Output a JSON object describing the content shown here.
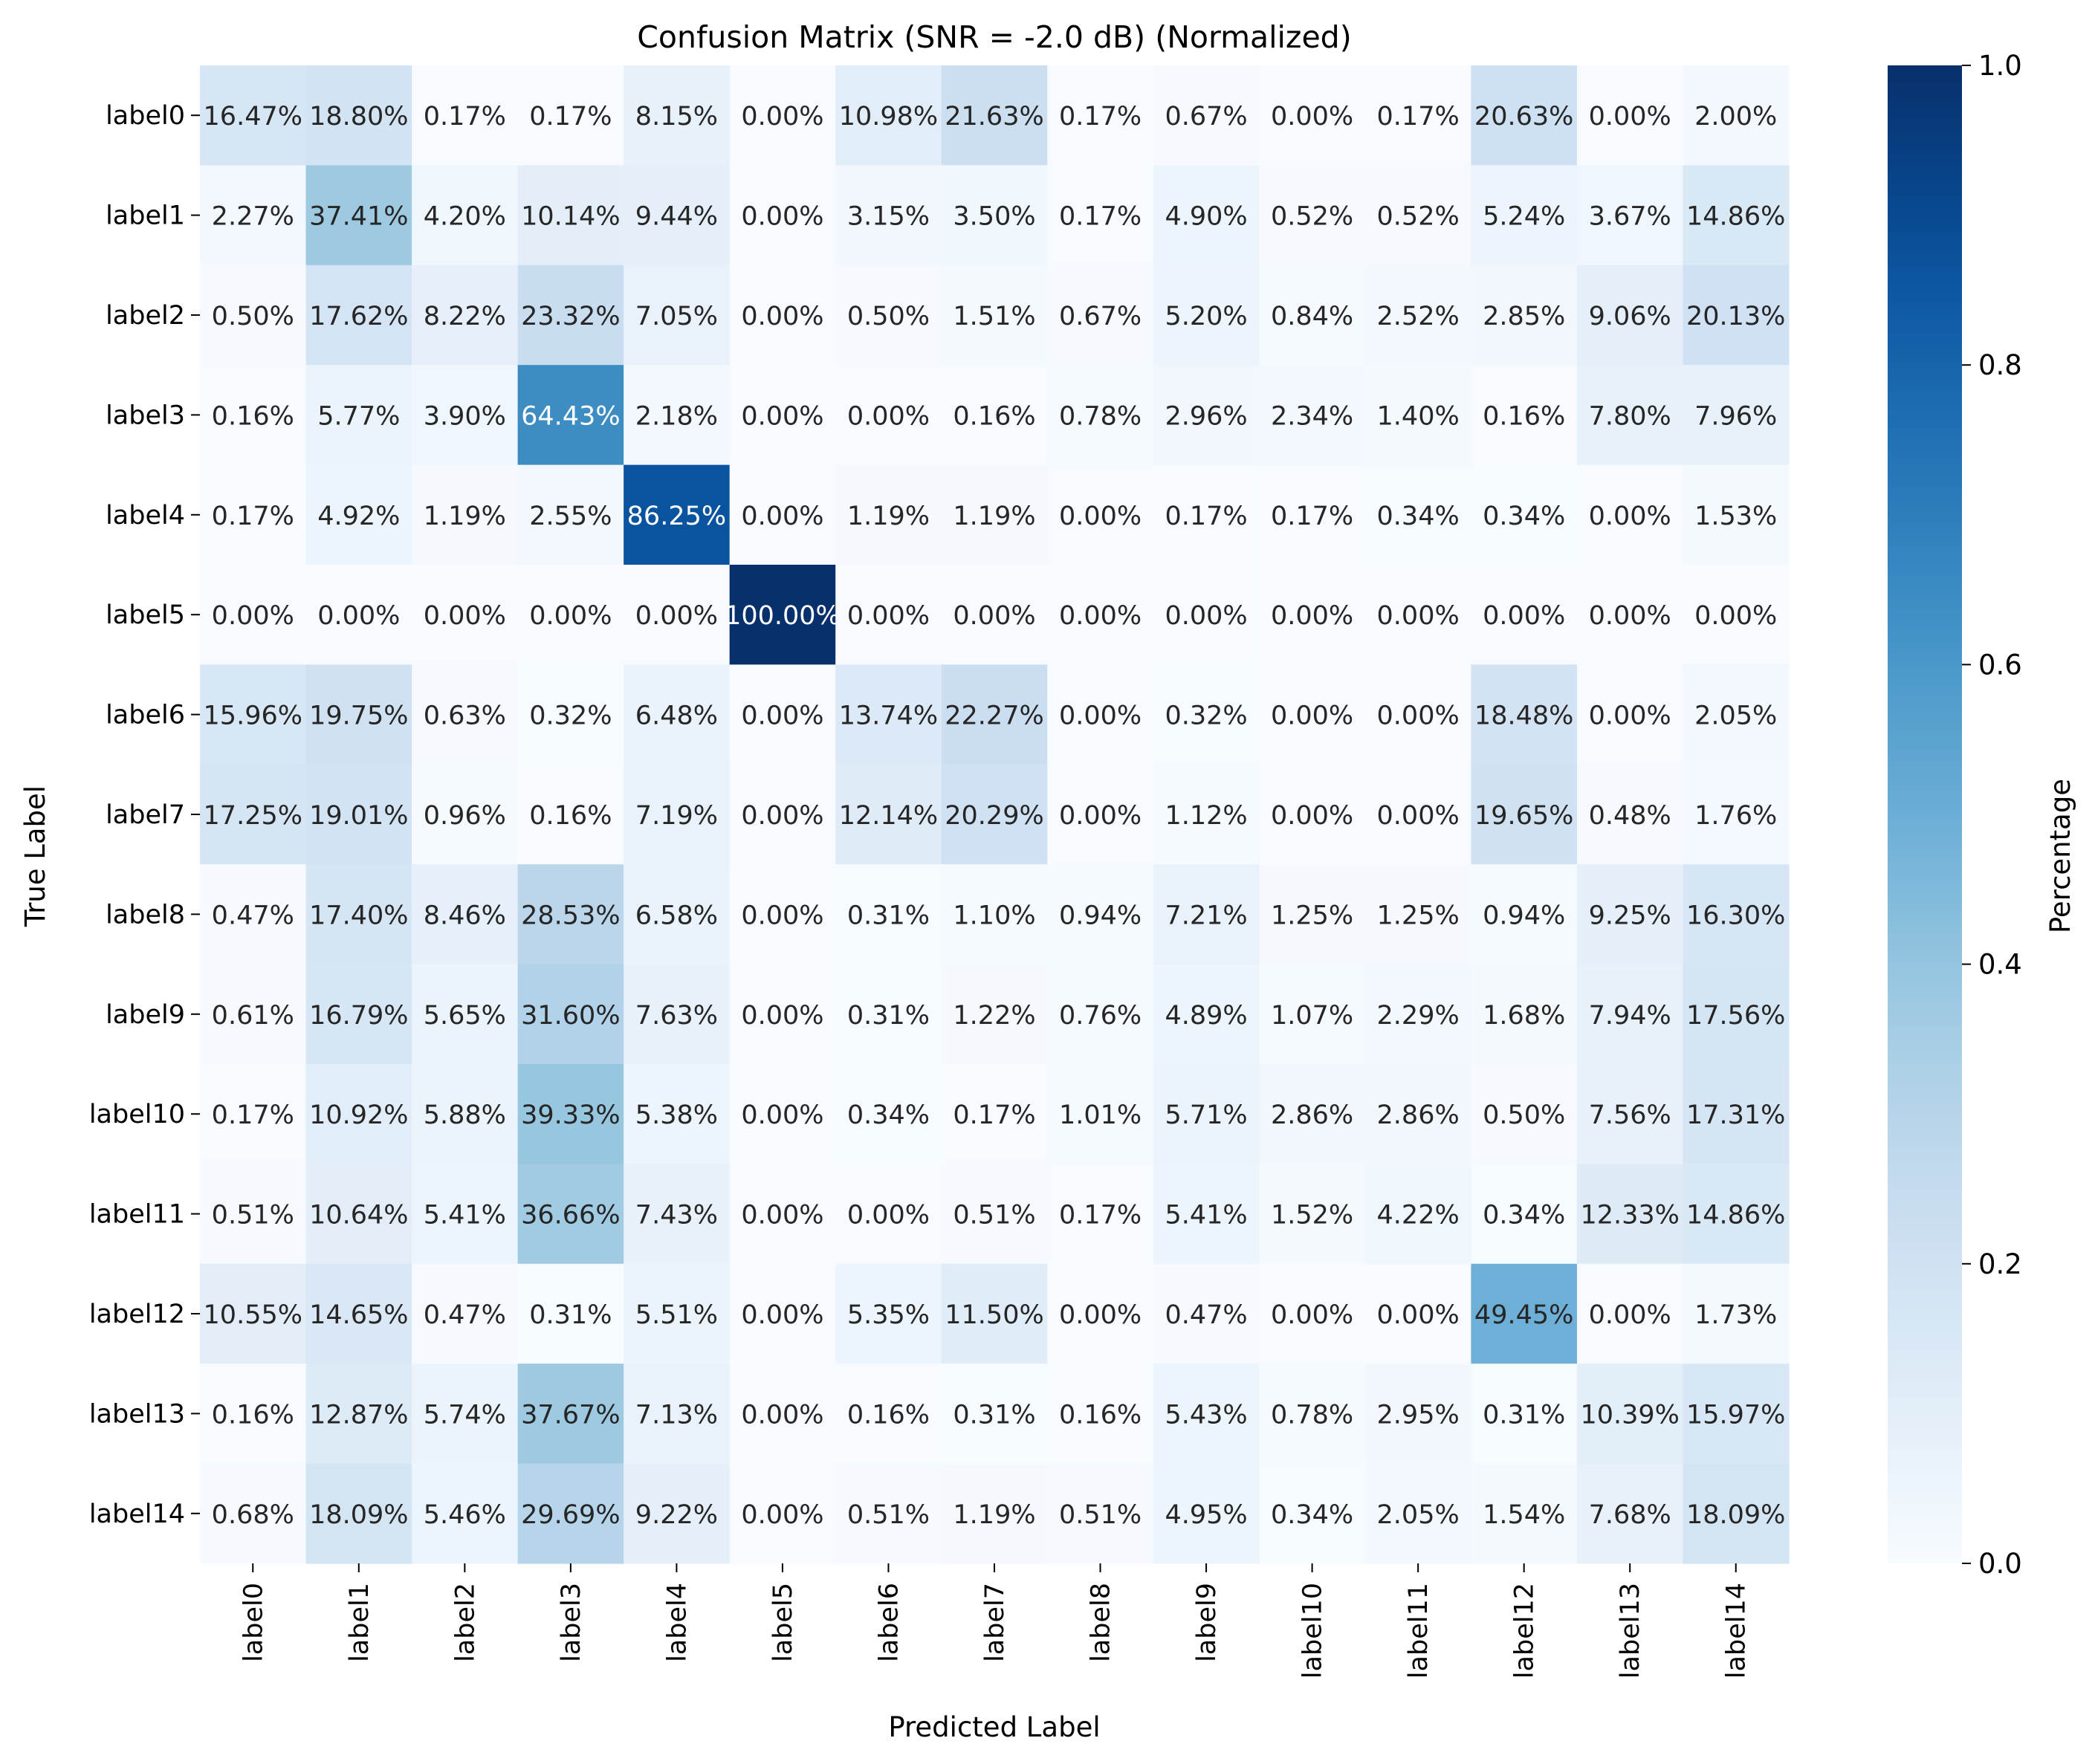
{
  "chart_data": {
    "type": "heatmap",
    "title": "Confusion Matrix (SNR = -2.0 dB) (Normalized)",
    "xlabel": "Predicted Label",
    "ylabel": "True Label",
    "x_categories": [
      "label0",
      "label1",
      "label2",
      "label3",
      "label4",
      "label5",
      "label6",
      "label7",
      "label8",
      "label9",
      "label10",
      "label11",
      "label12",
      "label13",
      "label14"
    ],
    "y_categories": [
      "label0",
      "label1",
      "label2",
      "label3",
      "label4",
      "label5",
      "label6",
      "label7",
      "label8",
      "label9",
      "label10",
      "label11",
      "label12",
      "label13",
      "label14"
    ],
    "values": [
      [
        16.47,
        18.8,
        0.17,
        0.17,
        8.15,
        0.0,
        10.98,
        21.63,
        0.17,
        0.67,
        0.0,
        0.17,
        20.63,
        0.0,
        2.0
      ],
      [
        2.27,
        37.41,
        4.2,
        10.14,
        9.44,
        0.0,
        3.15,
        3.5,
        0.17,
        4.9,
        0.52,
        0.52,
        5.24,
        3.67,
        14.86
      ],
      [
        0.5,
        17.62,
        8.22,
        23.32,
        7.05,
        0.0,
        0.5,
        1.51,
        0.67,
        5.2,
        0.84,
        2.52,
        2.85,
        9.06,
        20.13
      ],
      [
        0.16,
        5.77,
        3.9,
        64.43,
        2.18,
        0.0,
        0.0,
        0.16,
        0.78,
        2.96,
        2.34,
        1.4,
        0.16,
        7.8,
        7.96
      ],
      [
        0.17,
        4.92,
        1.19,
        2.55,
        86.25,
        0.0,
        1.19,
        1.19,
        0.0,
        0.17,
        0.17,
        0.34,
        0.34,
        0.0,
        1.53
      ],
      [
        0.0,
        0.0,
        0.0,
        0.0,
        0.0,
        100.0,
        0.0,
        0.0,
        0.0,
        0.0,
        0.0,
        0.0,
        0.0,
        0.0,
        0.0
      ],
      [
        15.96,
        19.75,
        0.63,
        0.32,
        6.48,
        0.0,
        13.74,
        22.27,
        0.0,
        0.32,
        0.0,
        0.0,
        18.48,
        0.0,
        2.05
      ],
      [
        17.25,
        19.01,
        0.96,
        0.16,
        7.19,
        0.0,
        12.14,
        20.29,
        0.0,
        1.12,
        0.0,
        0.0,
        19.65,
        0.48,
        1.76
      ],
      [
        0.47,
        17.4,
        8.46,
        28.53,
        6.58,
        0.0,
        0.31,
        1.1,
        0.94,
        7.21,
        1.25,
        1.25,
        0.94,
        9.25,
        16.3
      ],
      [
        0.61,
        16.79,
        5.65,
        31.6,
        7.63,
        0.0,
        0.31,
        1.22,
        0.76,
        4.89,
        1.07,
        2.29,
        1.68,
        7.94,
        17.56
      ],
      [
        0.17,
        10.92,
        5.88,
        39.33,
        5.38,
        0.0,
        0.34,
        0.17,
        1.01,
        5.71,
        2.86,
        2.86,
        0.5,
        7.56,
        17.31
      ],
      [
        0.51,
        10.64,
        5.41,
        36.66,
        7.43,
        0.0,
        0.0,
        0.51,
        0.17,
        5.41,
        1.52,
        4.22,
        0.34,
        12.33,
        14.86
      ],
      [
        10.55,
        14.65,
        0.47,
        0.31,
        5.51,
        0.0,
        5.35,
        11.5,
        0.0,
        0.47,
        0.0,
        0.0,
        49.45,
        0.0,
        1.73
      ],
      [
        0.16,
        12.87,
        5.74,
        37.67,
        7.13,
        0.0,
        0.16,
        0.31,
        0.16,
        5.43,
        0.78,
        2.95,
        0.31,
        10.39,
        15.97
      ],
      [
        0.68,
        18.09,
        5.46,
        29.69,
        9.22,
        0.0,
        0.51,
        1.19,
        0.51,
        4.95,
        0.34,
        2.05,
        1.54,
        7.68,
        18.09
      ]
    ],
    "value_format": "percent",
    "colormap": "Blues",
    "colorbar": {
      "label": "Percentage",
      "range": [
        0.0,
        1.0
      ],
      "ticks": [
        "0.0",
        "0.2",
        "0.4",
        "0.6",
        "0.8",
        "1.0"
      ]
    }
  }
}
